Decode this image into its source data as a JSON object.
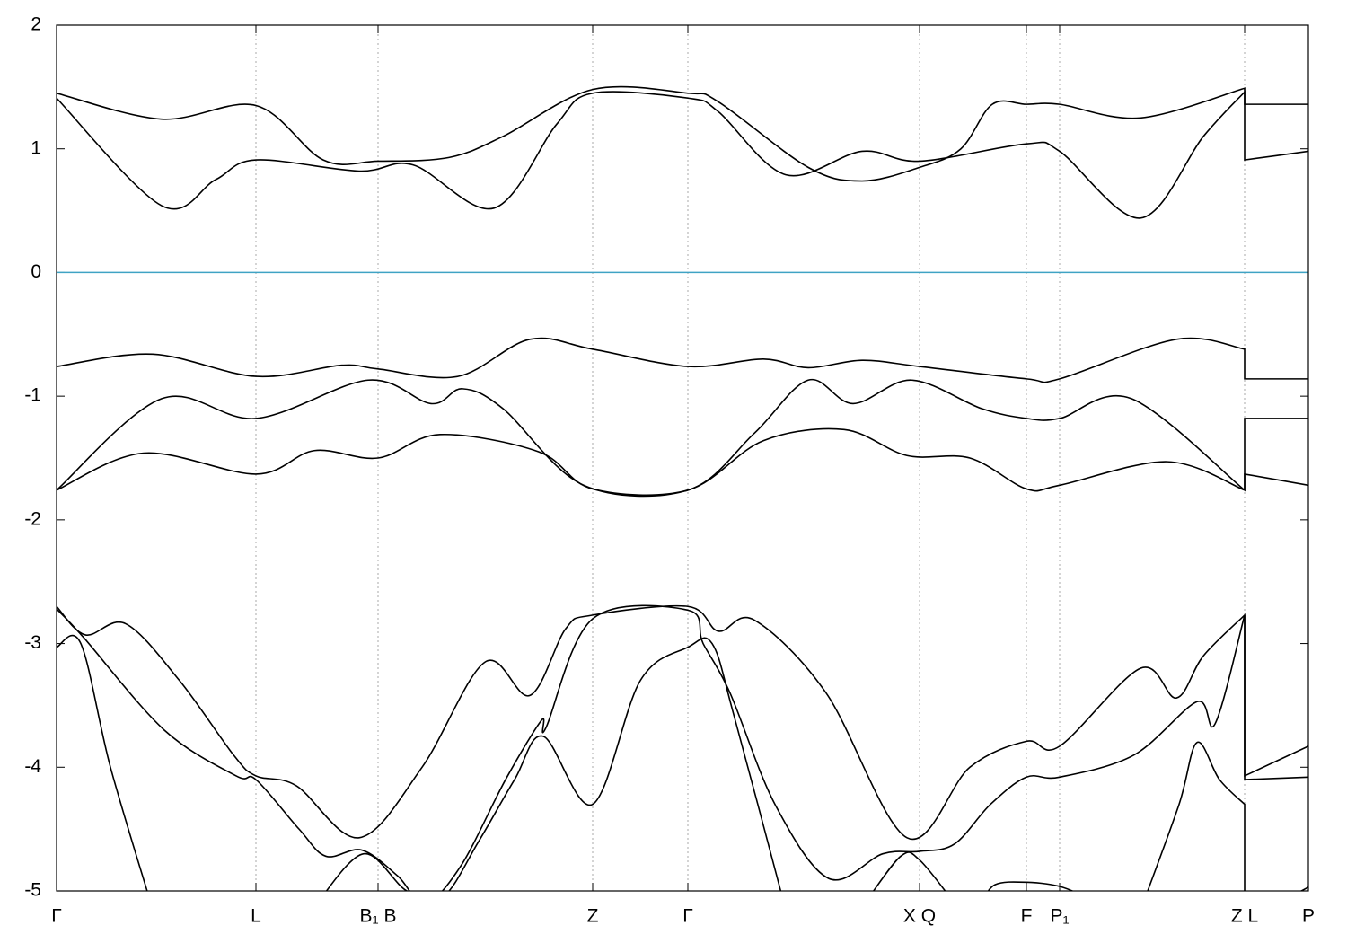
{
  "chart_data": {
    "type": "line",
    "xlim": [
      0,
      13.94
    ],
    "ylim": [
      -5,
      2
    ],
    "yticks": [
      -5,
      -4,
      -3,
      -2,
      -1,
      0,
      1,
      2
    ],
    "xticks": [
      {
        "value": 0,
        "label": "Γ"
      },
      {
        "value": 2.22,
        "label": "L"
      },
      {
        "value": 3.58,
        "label": "B₁ B"
      },
      {
        "value": 5.97,
        "label": "Z"
      },
      {
        "value": 7.03,
        "label": "Γ"
      },
      {
        "value": 9.61,
        "label": "X Q"
      },
      {
        "value": 10.8,
        "label": "F"
      },
      {
        "value": 11.17,
        "label": "P₁"
      },
      {
        "value": 13.23,
        "label": "Z L"
      },
      {
        "value": 13.94,
        "label": "P"
      }
    ],
    "grid": true,
    "hline": 0,
    "hline_color": "#3fa3c4",
    "series": [
      {
        "color": "#000000",
        "x": [
          0,
          1.17,
          2.22,
          2.97,
          3.58,
          4.37,
          4.97,
          5.97,
          7.03,
          7.37,
          8.37,
          8.97,
          9.61,
          10.07,
          10.42,
          10.8,
          11.17,
          12.07,
          13.23,
          13.23,
          13.94
        ],
        "values": [
          1.45,
          1.24,
          1.35,
          0.91,
          0.9,
          0.93,
          1.1,
          1.48,
          1.45,
          1.38,
          0.85,
          0.74,
          0.85,
          1.0,
          1.36,
          1.36,
          1.36,
          1.25,
          1.49,
          0.91,
          0.98
        ]
      },
      {
        "color": "#000000",
        "x": [
          0,
          1.17,
          1.77,
          2.22,
          3.37,
          3.97,
          4.87,
          5.57,
          5.97,
          7.03,
          7.37,
          8.12,
          8.97,
          9.61,
          10.8,
          11.17,
          12.07,
          12.77,
          13.23,
          13.23,
          13.94
        ],
        "values": [
          1.41,
          0.54,
          0.75,
          0.91,
          0.82,
          0.87,
          0.52,
          1.2,
          1.45,
          1.41,
          1.3,
          0.79,
          0.98,
          0.9,
          1.04,
          0.98,
          0.44,
          1.1,
          1.46,
          1.36,
          1.36
        ]
      },
      {
        "color": "#000000",
        "x": [
          0,
          1.07,
          2.22,
          3.17,
          3.58,
          4.47,
          5.27,
          5.97,
          7.03,
          7.87,
          8.37,
          8.97,
          9.61,
          10.8,
          11.17,
          12.47,
          13.23,
          13.23,
          13.94
        ],
        "values": [
          -0.76,
          -0.66,
          -0.84,
          -0.75,
          -0.78,
          -0.84,
          -0.54,
          -0.62,
          -0.76,
          -0.7,
          -0.77,
          -0.71,
          -0.76,
          -0.86,
          -0.86,
          -0.54,
          -0.62,
          -0.86,
          -0.86
        ]
      },
      {
        "color": "#000000",
        "x": [
          0,
          1.17,
          2.22,
          3.47,
          4.17,
          4.52,
          4.97,
          5.87,
          7.03,
          7.77,
          8.37,
          8.87,
          9.52,
          10.3,
          10.8,
          11.17,
          11.97,
          13.23,
          13.23,
          13.94
        ],
        "values": [
          -1.76,
          -1.02,
          -1.18,
          -0.87,
          -1.06,
          -0.94,
          -1.1,
          -1.72,
          -1.76,
          -1.3,
          -0.87,
          -1.06,
          -0.87,
          -1.1,
          -1.18,
          -1.18,
          -1.02,
          -1.76,
          -1.18,
          -1.18
        ]
      },
      {
        "color": "#000000",
        "x": [
          0,
          0.97,
          2.22,
          2.87,
          3.58,
          4.27,
          5.37,
          5.97,
          7.03,
          7.87,
          8.77,
          9.47,
          10.17,
          10.8,
          11.17,
          12.37,
          13.23,
          13.23,
          13.94
        ],
        "values": [
          -1.76,
          -1.46,
          -1.63,
          -1.44,
          -1.5,
          -1.31,
          -1.45,
          -1.75,
          -1.76,
          -1.36,
          -1.27,
          -1.48,
          -1.5,
          -1.75,
          -1.72,
          -1.53,
          -1.76,
          -1.63,
          -1.72
        ]
      },
      {
        "color": "#000000",
        "x": [
          0,
          0.32,
          0.77,
          1.37,
          1.97,
          2.22,
          2.67,
          3.37,
          4.07,
          4.77,
          5.27,
          5.67,
          5.97,
          7.03,
          7.37,
          7.77,
          8.57,
          9.47,
          10.17,
          10.8,
          11.17,
          12.07,
          12.47,
          12.77,
          13.23,
          13.23,
          13.94
        ],
        "values": [
          -2.7,
          -2.93,
          -2.84,
          -3.3,
          -3.9,
          -4.07,
          -4.15,
          -4.57,
          -4.0,
          -3.15,
          -3.42,
          -2.88,
          -2.77,
          -2.7,
          -2.9,
          -2.81,
          -3.4,
          -4.57,
          -4.0,
          -3.79,
          -3.83,
          -3.2,
          -3.44,
          -3.1,
          -2.77,
          -4.07,
          -3.83
        ]
      },
      {
        "color": "#000000",
        "x": [
          0,
          0.3,
          1.2,
          2.0,
          2.22,
          2.7,
          3.0,
          3.4,
          3.8,
          4.1,
          4.5,
          5.0,
          5.4,
          5.45,
          5.97,
          7.03,
          7.2,
          7.5,
          8.0,
          8.6,
          9.2,
          9.61,
          10.0,
          10.4,
          10.8,
          11.17,
          12.0,
          12.7,
          12.9,
          13.23,
          13.23,
          13.94
        ],
        "values": [
          -2.72,
          -2.95,
          -3.7,
          -4.07,
          -4.1,
          -4.5,
          -4.72,
          -4.67,
          -4.88,
          -5.1,
          -4.8,
          -4.1,
          -3.62,
          -3.68,
          -2.8,
          -2.73,
          -3.0,
          -3.4,
          -4.3,
          -4.9,
          -4.7,
          -4.68,
          -4.62,
          -4.3,
          -4.08,
          -4.08,
          -3.9,
          -3.47,
          -3.65,
          -2.77,
          -4.1,
          -4.08
        ]
      },
      {
        "color": "#000000",
        "x": [
          0,
          0.27,
          0.6,
          1.05
        ],
        "values": [
          -3.03,
          -3.0,
          -4.0,
          -5.1
        ]
      },
      {
        "color": "#000000",
        "x": [
          2.9,
          3.42,
          3.9,
          4.3,
          4.7,
          5.1,
          5.42,
          5.97,
          6.5,
          7.03,
          7.3,
          7.55,
          8.1
        ],
        "values": [
          -5.1,
          -4.7,
          -5.0,
          -5.05,
          -4.6,
          -4.1,
          -3.75,
          -4.3,
          -3.3,
          -3.03,
          -3.0,
          -3.6,
          -5.1
        ]
      },
      {
        "color": "#000000",
        "x": [
          9.0,
          9.4,
          9.61,
          10.0
        ],
        "values": [
          -5.1,
          -4.72,
          -4.75,
          -5.1
        ]
      },
      {
        "color": "#000000",
        "x": [
          10.3,
          10.45,
          10.8,
          11.2,
          11.6
        ],
        "values": [
          -5.1,
          -4.95,
          -4.93,
          -4.97,
          -5.1
        ]
      },
      {
        "color": "#000000",
        "x": [
          12.1,
          12.5,
          12.7,
          12.95,
          13.23,
          13.23
        ],
        "values": [
          -5.1,
          -4.3,
          -3.8,
          -4.1,
          -4.3,
          -5.1
        ]
      },
      {
        "color": "#000000",
        "x": [
          13.6,
          13.94
        ],
        "values": [
          -5.1,
          -4.97
        ]
      }
    ]
  }
}
